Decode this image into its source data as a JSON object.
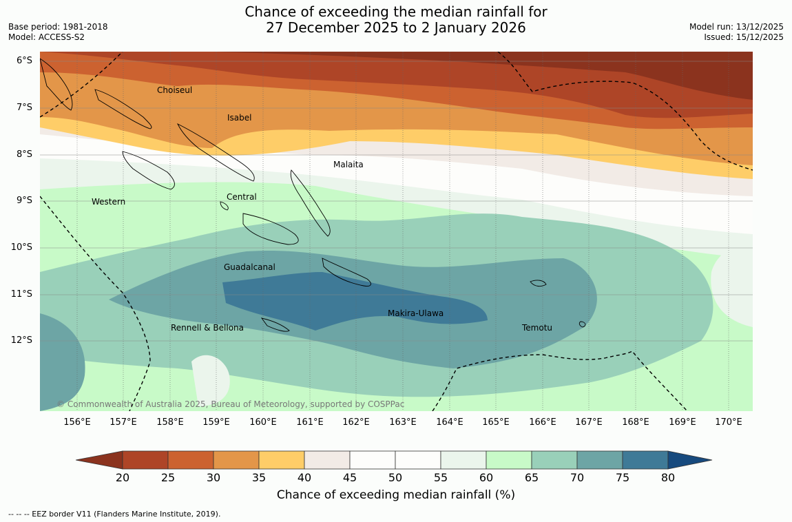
{
  "title": {
    "line1": "Chance of exceeding the median rainfall for",
    "line2": "27 December 2025 to 2 January 2026"
  },
  "meta_left": {
    "base_period": "Base period: 1981-2018",
    "model": "Model: ACCESS-S2"
  },
  "meta_right": {
    "model_run": "Model run: 13/12/2025",
    "issued": "Issued: 15/12/2025"
  },
  "lat_labels": [
    "6°S",
    "7°S",
    "8°S",
    "9°S",
    "10°S",
    "11°S",
    "12°S"
  ],
  "lon_labels": [
    "156°E",
    "157°E",
    "158°E",
    "159°E",
    "160°E",
    "161°E",
    "162°E",
    "163°E",
    "164°E",
    "165°E",
    "166°E",
    "167°E",
    "168°E",
    "169°E",
    "170°E"
  ],
  "islands": {
    "choiseul": "Choiseul",
    "isabel": "Isabel",
    "malaita": "Malaita",
    "western": "Western",
    "central": "Central",
    "guadalcanal": "Guadalcanal",
    "makira": "Makira-Ulawa",
    "rennell": "Rennell & Bellona",
    "temotu": "Temotu"
  },
  "copyright": "© Commonwealth of Australia 2025, Bureau of Meteorology, supported by COSPPac",
  "colorbar": {
    "ticks": [
      "20",
      "25",
      "30",
      "35",
      "40",
      "45",
      "50",
      "55",
      "60",
      "65",
      "70",
      "75",
      "80"
    ],
    "colors": [
      "#ae4527",
      "#cc6230",
      "#e39649",
      "#fecd68",
      "#f2ebe6",
      "#fdfdfb",
      "#fdfdfb",
      "#ebf5ec",
      "#c8fac8",
      "#99d0b9",
      "#6da5a5",
      "#3f7a97"
    ],
    "under_color": "#8b331e",
    "over_color": "#174a7e",
    "label": "Chance of exceeding median rainfall (%)"
  },
  "eez_note": "-- -- -- EEZ border V11 (Flanders Marine Institute, 2019)."
}
